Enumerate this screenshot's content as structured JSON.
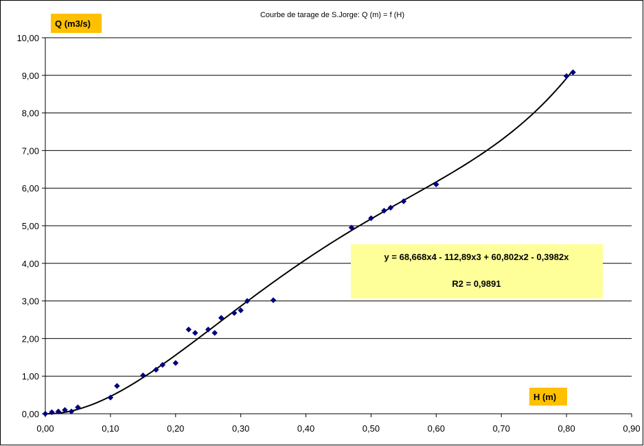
{
  "chart_data": {
    "type": "scatter",
    "title": "Courbe de tarage de S.Jorge: Q (m) = f (H)",
    "xlabel": "H (m)",
    "ylabel": "Q (m3/s)",
    "xlim": [
      0,
      0.9
    ],
    "ylim": [
      0,
      10
    ],
    "x_ticks": [
      "0,00",
      "0,10",
      "0,20",
      "0,30",
      "0,40",
      "0,50",
      "0,60",
      "0,70",
      "0,80",
      "0,90"
    ],
    "y_ticks": [
      "0,00",
      "1,00",
      "2,00",
      "3,00",
      "4,00",
      "5,00",
      "6,00",
      "7,00",
      "8,00",
      "9,00",
      "10,00"
    ],
    "grid": "horizontal",
    "series": [
      {
        "marker": "diamond",
        "color": "#000080",
        "points": [
          [
            0.0,
            0.0
          ],
          [
            0.01,
            0.04
          ],
          [
            0.02,
            0.06
          ],
          [
            0.03,
            0.1
          ],
          [
            0.04,
            0.06
          ],
          [
            0.05,
            0.17
          ],
          [
            0.1,
            0.43
          ],
          [
            0.11,
            0.74
          ],
          [
            0.15,
            1.02
          ],
          [
            0.17,
            1.17
          ],
          [
            0.18,
            1.3
          ],
          [
            0.2,
            1.35
          ],
          [
            0.22,
            2.24
          ],
          [
            0.23,
            2.15
          ],
          [
            0.25,
            2.24
          ],
          [
            0.26,
            2.15
          ],
          [
            0.27,
            2.55
          ],
          [
            0.29,
            2.68
          ],
          [
            0.3,
            2.75
          ],
          [
            0.31,
            3.0
          ],
          [
            0.35,
            3.02
          ],
          [
            0.47,
            4.95
          ],
          [
            0.5,
            5.2
          ],
          [
            0.52,
            5.4
          ],
          [
            0.53,
            5.48
          ],
          [
            0.55,
            5.65
          ],
          [
            0.6,
            6.1
          ],
          [
            0.8,
            8.98
          ],
          [
            0.81,
            9.08
          ]
        ]
      }
    ],
    "trendline": {
      "type": "polynomial",
      "order": 4,
      "coefficients": [
        68.668,
        -112.89,
        60.802,
        -0.3982,
        0
      ],
      "x_range": [
        0,
        0.81
      ],
      "color": "#000000",
      "equation_label": "y = 68,668x4 - 112,89x3 + 60,802x2 - 0,3982x",
      "r2_label": "R2 = 0,9891"
    },
    "colors": {
      "label_box": "#FFC000",
      "equation_box": "#FFFF99",
      "marker": "#000080",
      "grid": "#000000"
    }
  }
}
